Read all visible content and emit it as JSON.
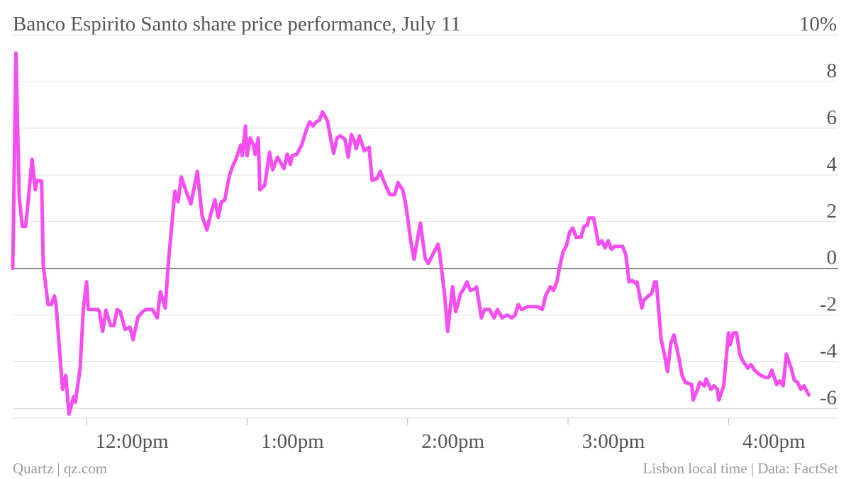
{
  "chart_data": {
    "type": "line",
    "title": "Banco Espirito Santo share price performance, July 11",
    "credit": "Quartz | qz.com",
    "note": "Lisbon local time | Data: FactSet",
    "x": [
      11.54,
      11.56,
      11.58,
      11.6,
      11.62,
      11.64,
      11.66,
      11.68,
      11.69,
      11.72,
      11.73,
      11.76,
      11.78,
      11.8,
      11.81,
      11.85,
      11.87,
      11.89,
      11.92,
      11.93,
      11.96,
      11.98,
      12.0,
      12.01,
      12.07,
      12.08,
      12.1,
      12.12,
      12.15,
      12.17,
      12.19,
      12.21,
      12.24,
      12.27,
      12.29,
      12.32,
      12.35,
      12.37,
      12.41,
      12.44,
      12.46,
      12.49,
      12.51,
      12.55,
      12.57,
      12.59,
      12.62,
      12.65,
      12.67,
      12.69,
      12.72,
      12.75,
      12.77,
      12.8,
      12.82,
      12.84,
      12.86,
      12.89,
      12.91,
      12.93,
      12.96,
      12.97,
      12.99,
      13.0,
      13.02,
      13.04,
      13.05,
      13.07,
      13.08,
      13.11,
      13.14,
      13.16,
      13.19,
      13.21,
      13.23,
      13.25,
      13.27,
      13.28,
      13.31,
      13.34,
      13.37,
      13.39,
      13.41,
      13.43,
      13.45,
      13.47,
      13.5,
      13.52,
      13.54,
      13.56,
      13.58,
      13.61,
      13.63,
      13.65,
      13.67,
      13.68,
      13.7,
      13.73,
      13.76,
      13.78,
      13.81,
      13.83,
      13.85,
      13.87,
      13.89,
      13.92,
      13.94,
      13.97,
      13.99,
      14.02,
      14.04,
      14.06,
      14.08,
      14.11,
      14.13,
      14.16,
      14.19,
      14.2,
      14.23,
      14.25,
      14.28,
      14.3,
      14.33,
      14.35,
      14.37,
      14.39,
      14.42,
      14.43,
      14.46,
      14.48,
      14.51,
      14.54,
      14.56,
      14.59,
      14.62,
      14.65,
      14.67,
      14.69,
      14.71,
      14.75,
      14.78,
      14.81,
      14.84,
      14.86,
      14.89,
      14.91,
      14.93,
      14.95,
      14.97,
      14.99,
      15.01,
      15.03,
      15.05,
      15.08,
      15.1,
      15.12,
      15.13,
      15.16,
      15.19,
      15.21,
      15.23,
      15.25,
      15.27,
      15.29,
      15.31,
      15.34,
      15.36,
      15.38,
      15.4,
      15.42,
      15.43,
      15.46,
      15.47,
      15.5,
      15.52,
      15.54,
      15.55,
      15.58,
      15.6,
      15.62,
      15.64,
      15.66,
      15.69,
      15.71,
      15.73,
      15.77,
      15.78,
      15.81,
      15.82,
      15.85,
      15.86,
      15.89,
      15.91,
      15.93,
      15.94,
      15.97,
      16.0,
      16.01,
      16.03,
      16.05,
      16.07,
      16.09,
      16.12,
      16.14,
      16.16,
      16.18,
      16.2,
      16.23,
      16.25,
      16.27,
      16.3,
      16.32,
      16.34,
      16.36,
      16.39,
      16.41,
      16.43,
      16.45,
      16.47,
      16.5
    ],
    "series": [
      {
        "color": "#f54ef0",
        "values": [
          0,
          9.21,
          3.0,
          1.79,
          1.79,
          3.15,
          4.67,
          3.36,
          3.76,
          3.73,
          0.12,
          -1.55,
          -1.55,
          -1.18,
          -1.55,
          -5.18,
          -4.58,
          -6.24,
          -5.48,
          -5.73,
          -4.27,
          -1.7,
          -0.58,
          -1.76,
          -1.76,
          -1.85,
          -2.7,
          -1.79,
          -2.45,
          -2.45,
          -1.76,
          -1.85,
          -2.61,
          -2.52,
          -3.06,
          -2.09,
          -1.85,
          -1.76,
          -1.76,
          -2.12,
          -1.0,
          -1.7,
          0.27,
          3.3,
          2.85,
          3.91,
          3.3,
          2.76,
          3.45,
          4.15,
          2.24,
          1.64,
          2.24,
          2.94,
          2.18,
          2.85,
          2.91,
          3.97,
          4.36,
          4.67,
          5.27,
          4.82,
          6.09,
          4.82,
          5.58,
          5.27,
          4.88,
          5.58,
          3.36,
          3.55,
          4.97,
          4.21,
          4.76,
          4.52,
          4.27,
          4.88,
          4.45,
          4.82,
          4.88,
          5.27,
          5.94,
          6.27,
          6.09,
          6.27,
          6.33,
          6.7,
          6.33,
          5.58,
          4.91,
          5.58,
          5.67,
          5.52,
          4.76,
          5.73,
          5.42,
          5.12,
          5.67,
          5.03,
          5.18,
          3.76,
          3.85,
          4.15,
          3.76,
          3.45,
          3.15,
          3.15,
          3.67,
          3.36,
          2.7,
          1.18,
          0.39,
          1.18,
          1.94,
          0.42,
          0.21,
          0.64,
          1.03,
          0.64,
          -1.09,
          -2.7,
          -0.79,
          -1.85,
          -1.09,
          -0.88,
          -0.58,
          -0.94,
          -0.88,
          -0.79,
          -2.12,
          -1.76,
          -1.76,
          -2.12,
          -1.76,
          -2.12,
          -2.0,
          -2.12,
          -2.0,
          -1.55,
          -1.76,
          -1.64,
          -1.64,
          -1.64,
          -1.76,
          -1.18,
          -0.79,
          -0.94,
          -0.58,
          0.12,
          0.73,
          0.97,
          1.55,
          1.73,
          1.33,
          1.33,
          1.79,
          1.85,
          2.15,
          2.15,
          1.03,
          1.18,
          0.88,
          1.18,
          0.82,
          0.94,
          0.94,
          0.94,
          0.58,
          -0.58,
          -0.52,
          -0.64,
          -0.58,
          -1.7,
          -1.39,
          -1.18,
          -1.09,
          -0.58,
          -0.58,
          -3.06,
          -3.67,
          -4.42,
          -3.21,
          -2.85,
          -3.82,
          -4.58,
          -4.88,
          -4.97,
          -5.64,
          -5.12,
          -4.88,
          -5.03,
          -4.73,
          -5.18,
          -5.03,
          -5.18,
          -5.64,
          -5.03,
          -2.76,
          -3.27,
          -2.76,
          -2.76,
          -3.67,
          -3.97,
          -4.27,
          -4.12,
          -4.33,
          -4.48,
          -4.58,
          -4.67,
          -4.67,
          -4.36,
          -4.97,
          -4.82,
          -5.03,
          -3.67,
          -4.27,
          -4.79,
          -4.88,
          -5.18,
          -5.03,
          -5.42
        ]
      }
    ],
    "xlim": [
      11.54,
      16.52
    ],
    "xticks": [
      {
        "value": 12,
        "label": "12:00pm"
      },
      {
        "value": 13,
        "label": "1:00pm"
      },
      {
        "value": 14,
        "label": "2:00pm"
      },
      {
        "value": 15,
        "label": "3:00pm"
      },
      {
        "value": 16,
        "label": "4:00pm"
      }
    ],
    "ylim": [
      -6.5,
      10
    ],
    "yticks": [
      {
        "value": 10,
        "label": "10%"
      },
      8,
      6,
      4,
      2,
      0,
      -2,
      -4,
      -6
    ],
    "grid": true
  }
}
